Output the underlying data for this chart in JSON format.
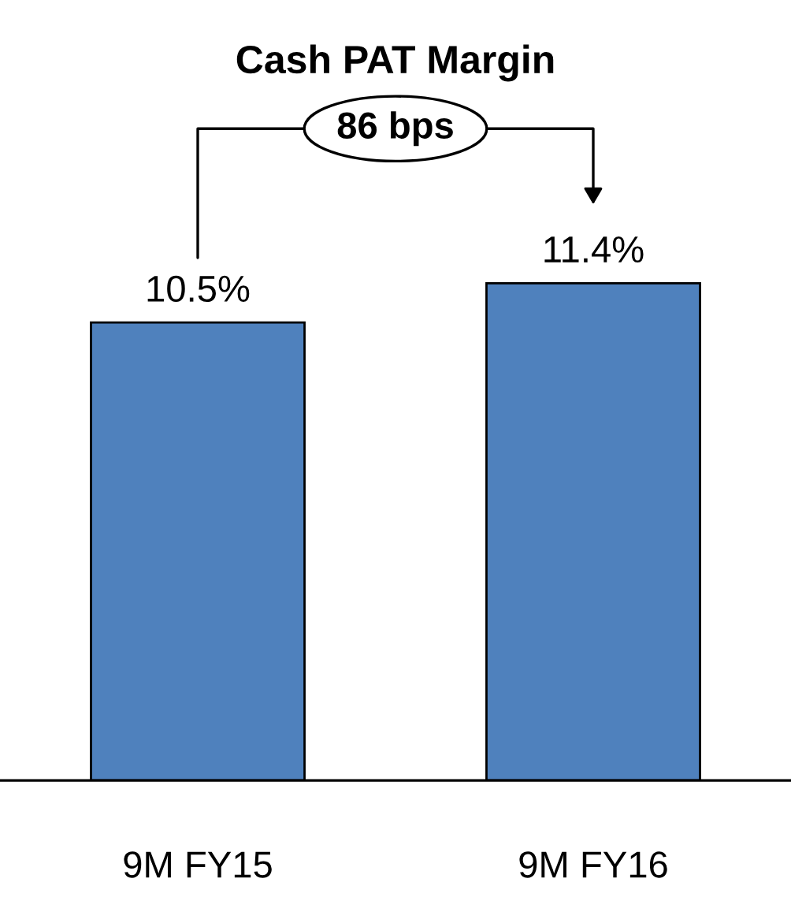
{
  "chart_data": {
    "type": "bar",
    "title": "Cash PAT Margin",
    "categories": [
      "9M FY15",
      "9M FY16"
    ],
    "values": [
      10.5,
      11.4
    ],
    "value_labels": [
      "10.5%",
      "11.4%"
    ],
    "color": "#4f81bd",
    "annotations": [
      "86 bps"
    ],
    "grid": false,
    "legend": false
  }
}
